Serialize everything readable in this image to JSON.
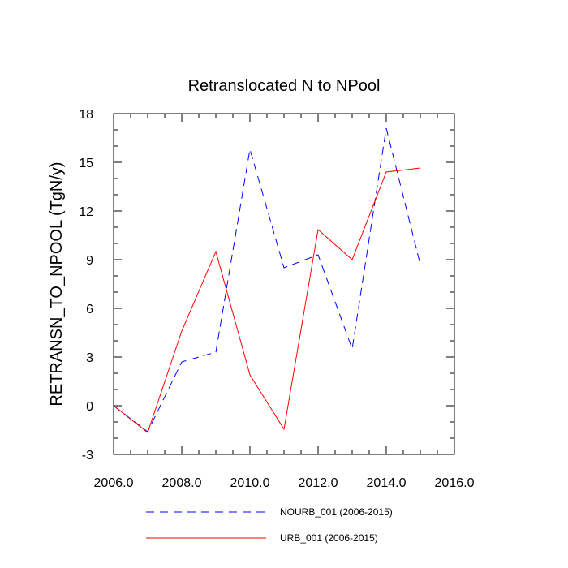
{
  "chart_data": {
    "type": "line",
    "title": "Retranslocated N to NPool",
    "xlabel": "",
    "ylabel": "RETRANSN_TO_NPOOL  (TgN/y)",
    "xlim": [
      2006,
      2016
    ],
    "ylim": [
      -3,
      18
    ],
    "xticks": [
      2006,
      2008,
      2010,
      2012,
      2014,
      2016
    ],
    "xtick_labels": [
      "2006.0",
      "2008.0",
      "2010.0",
      "2012.0",
      "2014.0",
      "2016.0"
    ],
    "yticks": [
      -3,
      0,
      3,
      6,
      9,
      12,
      15,
      18
    ],
    "ytick_labels": [
      "-3",
      "0",
      "3",
      "6",
      "9",
      "12",
      "15",
      "18"
    ],
    "grid": false,
    "legend_position": "bottom",
    "x": [
      2006,
      2007,
      2008,
      2009,
      2010,
      2011,
      2012,
      2013,
      2014,
      2015
    ],
    "series": [
      {
        "name": "NOURB_001 (2006-2015)",
        "color": "#0000ff",
        "style": "dashed",
        "values": [
          0.0,
          -1.6,
          2.7,
          3.3,
          15.8,
          8.5,
          9.3,
          3.5,
          17.1,
          8.7
        ]
      },
      {
        "name": "URB_001 (2006-2015)",
        "color": "#ff0000",
        "style": "solid",
        "values": [
          0.0,
          -1.65,
          4.6,
          9.5,
          1.9,
          -1.45,
          10.85,
          9.0,
          14.4,
          14.65
        ]
      }
    ]
  }
}
